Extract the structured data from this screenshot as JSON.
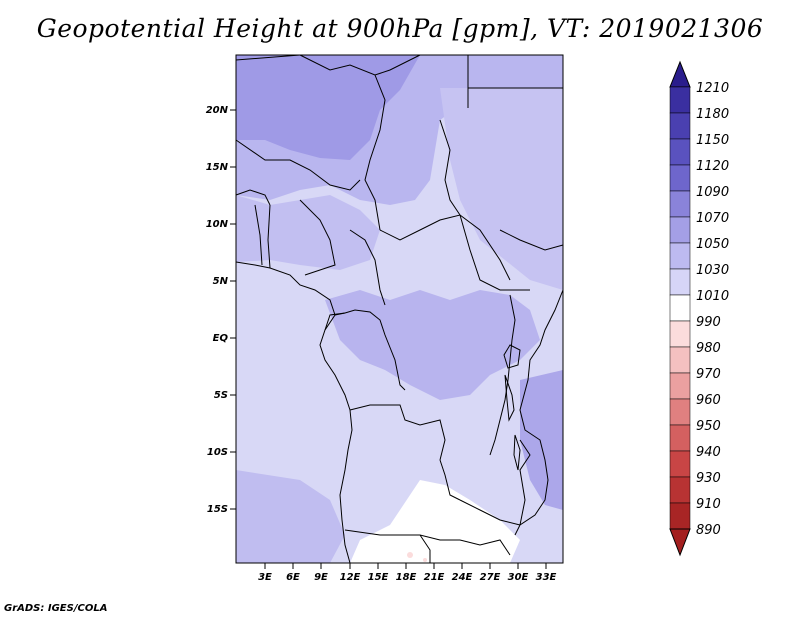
{
  "title": "Geopotential Height at 900hPa [gpm], VT: 2019021306",
  "credit": "GrADS: IGES/COLA",
  "map": {
    "lon_labels": [
      "3E",
      "6E",
      "9E",
      "12E",
      "15E",
      "18E",
      "21E",
      "24E",
      "27E",
      "30E",
      "33E"
    ],
    "lat_labels": [
      "20N",
      "15N",
      "10N",
      "5N",
      "EQ",
      "5S",
      "10S",
      "15S"
    ]
  },
  "colorbar": {
    "labels": [
      "1210",
      "1180",
      "1150",
      "1120",
      "1090",
      "1070",
      "1050",
      "1030",
      "1010",
      "990",
      "980",
      "970",
      "960",
      "950",
      "940",
      "930",
      "910",
      "890"
    ],
    "colors": {
      "top_arrow": "#2a1d8c",
      "c1": "#3a2fa0",
      "c2": "#4a40b0",
      "c3": "#5a52bf",
      "c4": "#6e66cc",
      "c5": "#8a83da",
      "c6": "#a49fe6",
      "c7": "#bdbaf0",
      "c8": "#d6d5f7",
      "c9": "#ffffff",
      "c10": "#fbdcdc",
      "c11": "#f4c0c0",
      "c12": "#eba0a0",
      "c13": "#e08080",
      "c14": "#d46060",
      "c15": "#c84545",
      "c16": "#b83333",
      "c17": "#a82525",
      "bottom_arrow": "#a31f1f"
    }
  }
}
